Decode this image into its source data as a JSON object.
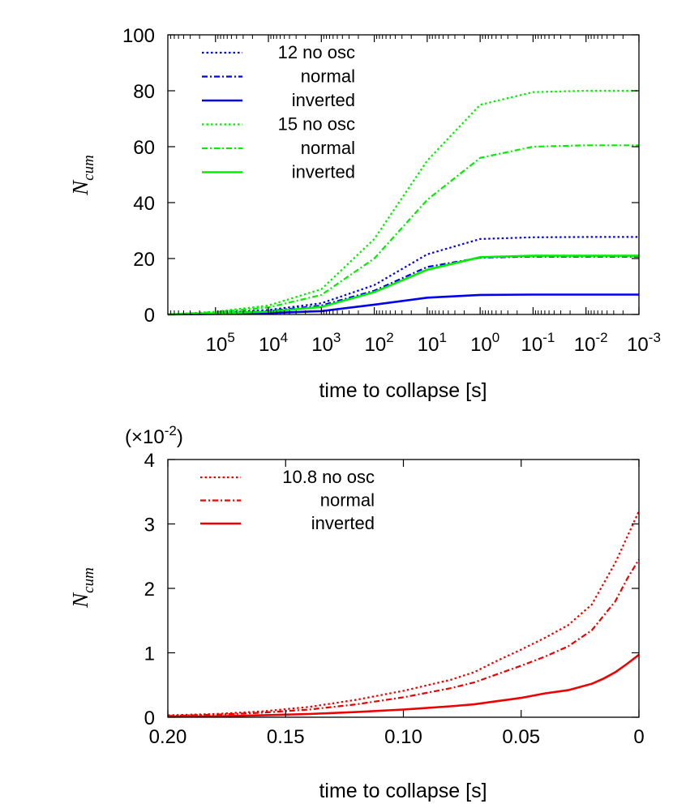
{
  "chart_data": [
    {
      "type": "line",
      "panel": "top",
      "x_scale": "log-reversed",
      "xlabel": "time to collapse [s]",
      "ylabel": "N",
      "ylabel_sub": "cum",
      "ylim": [
        0,
        100
      ],
      "xlim_log10": [
        5.9,
        -3
      ],
      "y_ticks": [
        "0",
        "20",
        "40",
        "60",
        "80",
        "100"
      ],
      "y_tick_values": [
        0,
        20,
        40,
        60,
        80,
        100
      ],
      "x_ticks": [
        {
          "base": "10",
          "exp": "5",
          "log": 5
        },
        {
          "base": "10",
          "exp": "4",
          "log": 4
        },
        {
          "base": "10",
          "exp": "3",
          "log": 3
        },
        {
          "base": "10",
          "exp": "2",
          "log": 2
        },
        {
          "base": "10",
          "exp": "1",
          "log": 1
        },
        {
          "base": "10",
          "exp": "0",
          "log": 0
        },
        {
          "base": "10",
          "exp": "-1",
          "log": -1
        },
        {
          "base": "10",
          "exp": "-2",
          "log": -2
        },
        {
          "base": "10",
          "exp": "-3",
          "log": -3
        }
      ],
      "series": [
        {
          "name": "12 no osc",
          "label": "12 no osc",
          "color": "#0000ee",
          "dash": "dotted",
          "points": [
            [
              5.9,
              0
            ],
            [
              5,
              0.5
            ],
            [
              4,
              1.6
            ],
            [
              3,
              4
            ],
            [
              2,
              10.5
            ],
            [
              1,
              21.5
            ],
            [
              0,
              27
            ],
            [
              -1,
              27.6
            ],
            [
              -2,
              27.7
            ],
            [
              -3,
              27.7
            ]
          ]
        },
        {
          "name": "12 normal",
          "label": "normal",
          "color": "#0000ee",
          "dash": "dashdot",
          "points": [
            [
              5.9,
              0
            ],
            [
              5,
              0.4
            ],
            [
              4,
              1.2
            ],
            [
              3,
              3.2
            ],
            [
              2,
              8.5
            ],
            [
              1,
              17
            ],
            [
              0,
              20.3
            ],
            [
              -1,
              20.7
            ],
            [
              -2,
              20.7
            ],
            [
              -3,
              20.7
            ]
          ]
        },
        {
          "name": "12 inverted",
          "label": "inverted",
          "color": "#0000ee",
          "dash": "solid",
          "points": [
            [
              5.9,
              0
            ],
            [
              5,
              0.2
            ],
            [
              4,
              0.5
            ],
            [
              3,
              1.2
            ],
            [
              2,
              3.5
            ],
            [
              1,
              6
            ],
            [
              0,
              7
            ],
            [
              -1,
              7.1
            ],
            [
              -2,
              7.1
            ],
            [
              -3,
              7.1
            ]
          ]
        },
        {
          "name": "15 no osc",
          "label": "15 no osc",
          "color": "#00ee00",
          "dash": "dotted",
          "points": [
            [
              5.9,
              0
            ],
            [
              5,
              1
            ],
            [
              4,
              3.2
            ],
            [
              3,
              9
            ],
            [
              2,
              27
            ],
            [
              1,
              55
            ],
            [
              0,
              75
            ],
            [
              -1,
              79.5
            ],
            [
              -2,
              80
            ],
            [
              -3,
              80
            ]
          ]
        },
        {
          "name": "15 normal",
          "label": "normal",
          "color": "#00ee00",
          "dash": "dashdot",
          "points": [
            [
              5.9,
              0
            ],
            [
              5,
              0.8
            ],
            [
              4,
              2.5
            ],
            [
              3,
              7
            ],
            [
              2,
              20
            ],
            [
              1,
              41
            ],
            [
              0,
              56
            ],
            [
              -1,
              60
            ],
            [
              -2,
              60.5
            ],
            [
              -3,
              60.5
            ]
          ]
        },
        {
          "name": "15 inverted",
          "label": "inverted",
          "color": "#00ee00",
          "dash": "solid",
          "points": [
            [
              5.9,
              0
            ],
            [
              5,
              0.4
            ],
            [
              4,
              1
            ],
            [
              3,
              2.7
            ],
            [
              2,
              8
            ],
            [
              1,
              16
            ],
            [
              0,
              20.5
            ],
            [
              -1,
              21
            ],
            [
              -2,
              21
            ],
            [
              -3,
              21
            ]
          ]
        }
      ]
    },
    {
      "type": "line",
      "panel": "bottom",
      "x_scale": "linear-reversed",
      "xlabel": "time to collapse [s]",
      "ylabel": "N",
      "ylabel_sub": "cum",
      "scale_note_base": "(×10",
      "scale_note_exp": "-2",
      "scale_note_close": ")",
      "ylim": [
        0,
        4
      ],
      "xlim": [
        0.2,
        0
      ],
      "y_ticks": [
        "0",
        "1",
        "2",
        "3",
        "4"
      ],
      "y_tick_values": [
        0,
        1,
        2,
        3,
        4
      ],
      "x_ticks": [
        "0.20",
        "0.15",
        "0.10",
        "0.05",
        "0"
      ],
      "x_tick_values": [
        0.2,
        0.15,
        0.1,
        0.05,
        0
      ],
      "series": [
        {
          "name": "10.8 no osc",
          "label": "10.8 no osc",
          "color": "#ee0000",
          "dash": "dotted",
          "points": [
            [
              0.2,
              0.03
            ],
            [
              0.18,
              0.05
            ],
            [
              0.16,
              0.09
            ],
            [
              0.14,
              0.16
            ],
            [
              0.12,
              0.27
            ],
            [
              0.1,
              0.41
            ],
            [
              0.08,
              0.58
            ],
            [
              0.07,
              0.7
            ],
            [
              0.06,
              0.88
            ],
            [
              0.05,
              1.05
            ],
            [
              0.04,
              1.23
            ],
            [
              0.03,
              1.43
            ],
            [
              0.02,
              1.75
            ],
            [
              0.01,
              2.4
            ],
            [
              0.005,
              2.8
            ],
            [
              0,
              3.2
            ]
          ]
        },
        {
          "name": "10.8 normal",
          "label": "normal",
          "color": "#ee0000",
          "dash": "dashdot",
          "points": [
            [
              0.2,
              0.02
            ],
            [
              0.18,
              0.04
            ],
            [
              0.16,
              0.07
            ],
            [
              0.14,
              0.12
            ],
            [
              0.12,
              0.2
            ],
            [
              0.1,
              0.31
            ],
            [
              0.08,
              0.45
            ],
            [
              0.07,
              0.54
            ],
            [
              0.06,
              0.67
            ],
            [
              0.05,
              0.8
            ],
            [
              0.04,
              0.94
            ],
            [
              0.03,
              1.1
            ],
            [
              0.02,
              1.35
            ],
            [
              0.01,
              1.8
            ],
            [
              0.005,
              2.15
            ],
            [
              0,
              2.45
            ]
          ]
        },
        {
          "name": "10.8 inverted",
          "label": "inverted",
          "color": "#ee0000",
          "dash": "solid",
          "points": [
            [
              0.2,
              0.01
            ],
            [
              0.18,
              0.015
            ],
            [
              0.16,
              0.03
            ],
            [
              0.14,
              0.05
            ],
            [
              0.12,
              0.08
            ],
            [
              0.1,
              0.12
            ],
            [
              0.08,
              0.17
            ],
            [
              0.07,
              0.2
            ],
            [
              0.06,
              0.25
            ],
            [
              0.05,
              0.3
            ],
            [
              0.04,
              0.37
            ],
            [
              0.03,
              0.42
            ],
            [
              0.02,
              0.52
            ],
            [
              0.015,
              0.6
            ],
            [
              0.01,
              0.7
            ],
            [
              0.005,
              0.83
            ],
            [
              0,
              0.97
            ]
          ]
        }
      ]
    }
  ]
}
